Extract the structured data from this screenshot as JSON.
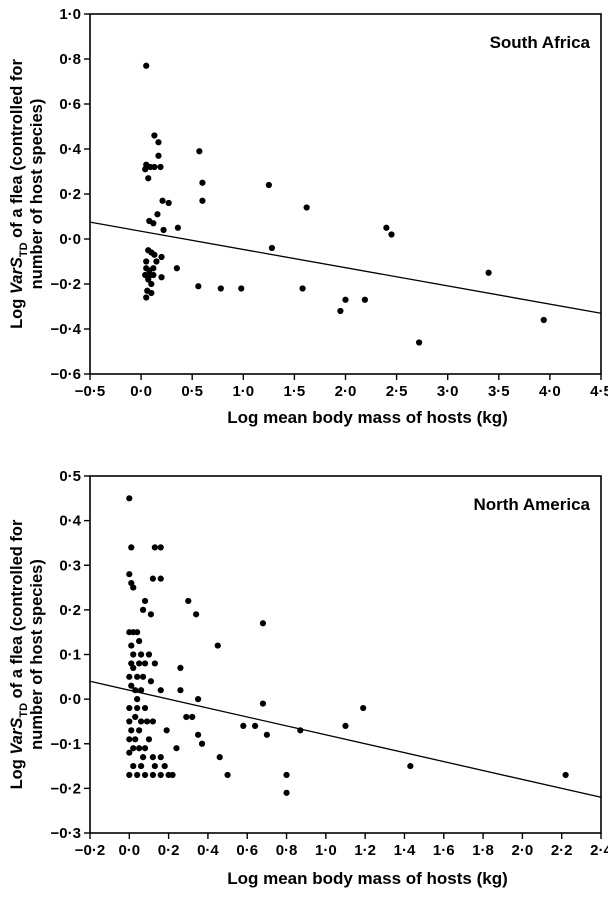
{
  "chart_data": [
    {
      "type": "scatter",
      "title": "South Africa",
      "xlabel": "Log mean body mass of hosts (kg)",
      "ylabel_parts": [
        "Log ",
        "VarS",
        "TD",
        " of a flea (controlled for",
        "number of host species)"
      ],
      "xlim": [
        -0.5,
        4.5
      ],
      "ylim": [
        -0.6,
        1.0
      ],
      "xticks": [
        -0.5,
        0.0,
        0.5,
        1.0,
        1.5,
        2.0,
        2.5,
        3.0,
        3.5,
        4.0,
        4.5
      ],
      "yticks": [
        -0.6,
        -0.4,
        -0.2,
        0.0,
        0.2,
        0.4,
        0.6,
        0.8,
        1.0
      ],
      "xtick_labels": [
        "−0·5",
        "0·0",
        "0·5",
        "1·0",
        "1·5",
        "2·0",
        "2·5",
        "3·0",
        "3·5",
        "4·0",
        "4·5"
      ],
      "ytick_labels": [
        "−0·6",
        "−0·4",
        "−0·2",
        "0·0",
        "0·2",
        "0·4",
        "0·6",
        "0·8",
        "1·0"
      ],
      "grid": false,
      "fit_line": {
        "x": [
          -0.5,
          4.5
        ],
        "y": [
          0.075,
          -0.33
        ]
      },
      "points": [
        [
          0.05,
          0.77
        ],
        [
          0.13,
          0.46
        ],
        [
          0.17,
          0.43
        ],
        [
          0.17,
          0.37
        ],
        [
          0.05,
          0.33
        ],
        [
          0.09,
          0.32
        ],
        [
          0.13,
          0.32
        ],
        [
          0.04,
          0.31
        ],
        [
          0.19,
          0.32
        ],
        [
          0.07,
          0.27
        ],
        [
          0.57,
          0.39
        ],
        [
          0.6,
          0.25
        ],
        [
          1.25,
          0.24
        ],
        [
          0.6,
          0.17
        ],
        [
          0.21,
          0.17
        ],
        [
          0.27,
          0.16
        ],
        [
          1.62,
          0.14
        ],
        [
          0.16,
          0.11
        ],
        [
          0.08,
          0.08
        ],
        [
          0.12,
          0.07
        ],
        [
          0.36,
          0.05
        ],
        [
          0.22,
          0.04
        ],
        [
          2.4,
          0.05
        ],
        [
          2.45,
          0.02
        ],
        [
          0.07,
          -0.05
        ],
        [
          0.1,
          -0.06
        ],
        [
          0.13,
          -0.07
        ],
        [
          0.2,
          -0.08
        ],
        [
          0.05,
          -0.1
        ],
        [
          0.15,
          -0.1
        ],
        [
          0.05,
          -0.13
        ],
        [
          0.08,
          -0.14
        ],
        [
          0.12,
          -0.13
        ],
        [
          0.35,
          -0.13
        ],
        [
          0.04,
          -0.16
        ],
        [
          0.09,
          -0.16
        ],
        [
          0.12,
          -0.16
        ],
        [
          0.2,
          -0.17
        ],
        [
          0.07,
          -0.18
        ],
        [
          1.28,
          -0.04
        ],
        [
          0.1,
          -0.2
        ],
        [
          0.56,
          -0.21
        ],
        [
          0.78,
          -0.22
        ],
        [
          0.98,
          -0.22
        ],
        [
          1.58,
          -0.22
        ],
        [
          0.06,
          -0.23
        ],
        [
          0.1,
          -0.24
        ],
        [
          0.05,
          -0.26
        ],
        [
          2.0,
          -0.27
        ],
        [
          2.19,
          -0.27
        ],
        [
          3.4,
          -0.15
        ],
        [
          1.95,
          -0.32
        ],
        [
          3.94,
          -0.36
        ],
        [
          2.72,
          -0.46
        ]
      ]
    },
    {
      "type": "scatter",
      "title": "North America",
      "xlabel": "Log mean body mass of hosts (kg)",
      "ylabel_parts": [
        "Log ",
        "VarS",
        "TD",
        " of a flea (controlled for",
        "number of host species)"
      ],
      "xlim": [
        -0.2,
        2.4
      ],
      "ylim": [
        -0.3,
        0.5
      ],
      "xticks": [
        -0.2,
        0.0,
        0.2,
        0.4,
        0.6,
        0.8,
        1.0,
        1.2,
        1.4,
        1.6,
        1.8,
        2.0,
        2.2,
        2.4
      ],
      "yticks": [
        -0.3,
        -0.2,
        -0.1,
        0.0,
        0.1,
        0.2,
        0.3,
        0.4,
        0.5
      ],
      "xtick_labels": [
        "−0·2",
        "0·0",
        "0·2",
        "0·4",
        "0·6",
        "0·8",
        "1·0",
        "1·2",
        "1·4",
        "1·6",
        "1·8",
        "2·0",
        "2·2",
        "2·4"
      ],
      "ytick_labels": [
        "−0·3",
        "−0·2",
        "−0·1",
        "0·0",
        "0·1",
        "0·2",
        "0·3",
        "0·4",
        "0·5"
      ],
      "grid": false,
      "fit_line": {
        "x": [
          -0.2,
          2.4
        ],
        "y": [
          0.04,
          -0.22
        ]
      },
      "points": [
        [
          0.0,
          0.45
        ],
        [
          0.01,
          0.34
        ],
        [
          0.13,
          0.34
        ],
        [
          0.16,
          0.34
        ],
        [
          0.0,
          0.28
        ],
        [
          0.16,
          0.27
        ],
        [
          0.12,
          0.27
        ],
        [
          0.01,
          0.26
        ],
        [
          0.02,
          0.25
        ],
        [
          0.11,
          0.19
        ],
        [
          0.08,
          0.22
        ],
        [
          0.3,
          0.22
        ],
        [
          0.07,
          0.2
        ],
        [
          0.34,
          0.19
        ],
        [
          0.68,
          0.17
        ],
        [
          0.0,
          0.15
        ],
        [
          0.02,
          0.15
        ],
        [
          0.04,
          0.15
        ],
        [
          0.01,
          0.12
        ],
        [
          0.05,
          0.13
        ],
        [
          0.45,
          0.12
        ],
        [
          0.02,
          0.1
        ],
        [
          0.06,
          0.1
        ],
        [
          0.1,
          0.1
        ],
        [
          0.01,
          0.08
        ],
        [
          0.05,
          0.08
        ],
        [
          0.08,
          0.08
        ],
        [
          0.13,
          0.08
        ],
        [
          0.02,
          0.07
        ],
        [
          0.26,
          0.07
        ],
        [
          0.0,
          0.05
        ],
        [
          0.04,
          0.05
        ],
        [
          0.07,
          0.05
        ],
        [
          0.11,
          0.04
        ],
        [
          0.01,
          0.03
        ],
        [
          0.03,
          0.02
        ],
        [
          0.06,
          0.02
        ],
        [
          0.16,
          0.02
        ],
        [
          0.26,
          0.02
        ],
        [
          0.35,
          0.0
        ],
        [
          0.04,
          0.0
        ],
        [
          0.0,
          -0.02
        ],
        [
          0.04,
          -0.02
        ],
        [
          0.08,
          -0.02
        ],
        [
          0.68,
          -0.01
        ],
        [
          1.19,
          -0.02
        ],
        [
          0.03,
          -0.04
        ],
        [
          0.29,
          -0.04
        ],
        [
          0.32,
          -0.04
        ],
        [
          0.0,
          -0.05
        ],
        [
          0.06,
          -0.05
        ],
        [
          0.09,
          -0.05
        ],
        [
          0.12,
          -0.05
        ],
        [
          0.58,
          -0.06
        ],
        [
          0.64,
          -0.06
        ],
        [
          1.1,
          -0.06
        ],
        [
          0.01,
          -0.07
        ],
        [
          0.05,
          -0.07
        ],
        [
          0.19,
          -0.07
        ],
        [
          0.87,
          -0.07
        ],
        [
          0.0,
          -0.09
        ],
        [
          0.03,
          -0.09
        ],
        [
          0.1,
          -0.09
        ],
        [
          0.35,
          -0.08
        ],
        [
          0.7,
          -0.08
        ],
        [
          0.02,
          -0.11
        ],
        [
          0.05,
          -0.11
        ],
        [
          0.08,
          -0.11
        ],
        [
          0.24,
          -0.11
        ],
        [
          0.37,
          -0.1
        ],
        [
          0.0,
          -0.12
        ],
        [
          0.07,
          -0.13
        ],
        [
          0.12,
          -0.13
        ],
        [
          0.16,
          -0.13
        ],
        [
          0.46,
          -0.13
        ],
        [
          0.02,
          -0.15
        ],
        [
          0.06,
          -0.15
        ],
        [
          0.13,
          -0.15
        ],
        [
          0.18,
          -0.15
        ],
        [
          1.43,
          -0.15
        ],
        [
          0.0,
          -0.17
        ],
        [
          0.04,
          -0.17
        ],
        [
          0.08,
          -0.17
        ],
        [
          0.12,
          -0.17
        ],
        [
          0.16,
          -0.17
        ],
        [
          0.2,
          -0.17
        ],
        [
          0.22,
          -0.17
        ],
        [
          0.5,
          -0.17
        ],
        [
          0.8,
          -0.17
        ],
        [
          2.22,
          -0.17
        ],
        [
          0.8,
          -0.21
        ]
      ]
    }
  ]
}
